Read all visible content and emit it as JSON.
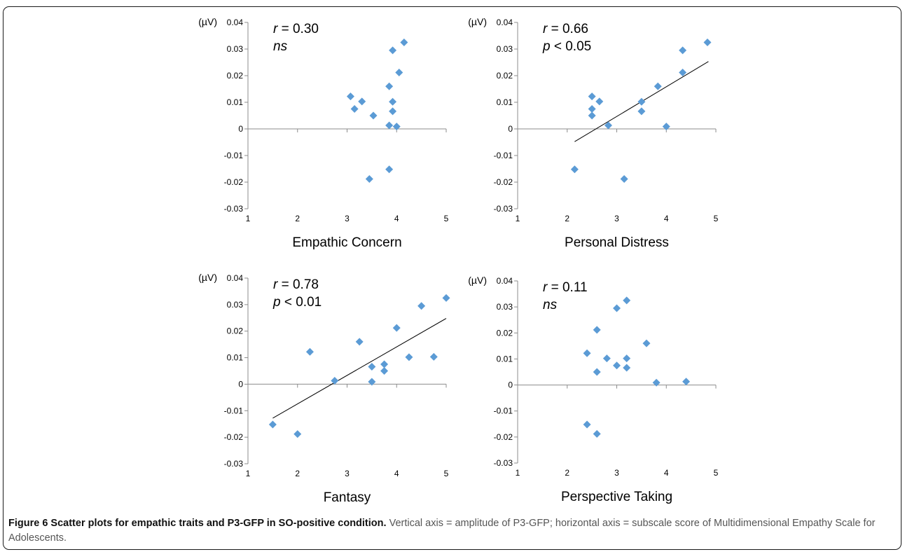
{
  "figure": {
    "caption_title": "Figure 6 Scatter plots for empathic traits and P3-GFP in SO-positive condition.",
    "caption_text": " Vertical axis = amplitude of P3-GFP; horizontal axis = subscale score of Multidimensional Empathy Scale for Adolescents."
  },
  "colors": {
    "marker": "#5b9bd5",
    "axis": "#8c8c8c",
    "text": "#000000",
    "fit": "#000000"
  },
  "chart_data": [
    {
      "type": "scatter",
      "xlabel": "Empathic Concern",
      "unit": "(µV)",
      "xlim": [
        1,
        5
      ],
      "ylim": [
        -0.03,
        0.04
      ],
      "xticks": [
        "1",
        "2",
        "3",
        "4",
        "5"
      ],
      "yticks": [
        "-0.03",
        "-0.02",
        "-0.01",
        "0",
        "0.01",
        "0.02",
        "0.03",
        "0.04"
      ],
      "stat_r": "r",
      "stat_r_val": " = 0.30",
      "stat_p": "ns",
      "stat_p_val": "",
      "trendline": null,
      "points": [
        [
          3.07,
          0.0122
        ],
        [
          3.15,
          0.0075
        ],
        [
          3.3,
          0.0103
        ],
        [
          3.45,
          -0.0188
        ],
        [
          3.53,
          0.005
        ],
        [
          3.85,
          0.016
        ],
        [
          3.85,
          0.0013
        ],
        [
          3.85,
          -0.0152
        ],
        [
          3.92,
          0.0295
        ],
        [
          3.92,
          0.0102
        ],
        [
          3.92,
          0.0066
        ],
        [
          4.0,
          0.0009
        ],
        [
          4.05,
          0.0212
        ],
        [
          4.15,
          0.0325
        ]
      ]
    },
    {
      "type": "scatter",
      "xlabel": "Personal Distress",
      "unit": "(µV)",
      "xlim": [
        1,
        5
      ],
      "ylim": [
        -0.03,
        0.04
      ],
      "xticks": [
        "1",
        "2",
        "3",
        "4",
        "5"
      ],
      "yticks": [
        "-0.03",
        "-0.02",
        "-0.01",
        "0",
        "0.01",
        "0.02",
        "0.03",
        "0.04"
      ],
      "stat_r": "r",
      "stat_r_val": " = 0.66",
      "stat_p": "p",
      "stat_p_val": " < 0.05",
      "trendline": [
        [
          2.15,
          -0.0048
        ],
        [
          4.85,
          0.0253
        ]
      ],
      "points": [
        [
          2.15,
          -0.0152
        ],
        [
          2.5,
          0.0122
        ],
        [
          2.5,
          0.0075
        ],
        [
          2.5,
          0.005
        ],
        [
          2.65,
          0.0103
        ],
        [
          2.83,
          0.0013
        ],
        [
          3.15,
          -0.0188
        ],
        [
          3.5,
          0.0102
        ],
        [
          3.5,
          0.0066
        ],
        [
          3.83,
          0.016
        ],
        [
          4.0,
          0.0009
        ],
        [
          4.33,
          0.0295
        ],
        [
          4.33,
          0.0212
        ],
        [
          4.83,
          0.0325
        ]
      ]
    },
    {
      "type": "scatter",
      "xlabel": "Fantasy",
      "unit": "(µV)",
      "xlim": [
        1,
        5
      ],
      "ylim": [
        -0.03,
        0.04
      ],
      "xticks": [
        "1",
        "2",
        "3",
        "4",
        "5"
      ],
      "yticks": [
        "-0.03",
        "-0.02",
        "-0.01",
        "0",
        "0.01",
        "0.02",
        "0.03",
        "0.04"
      ],
      "stat_r": "r",
      "stat_r_val": " = 0.78",
      "stat_p": "p",
      "stat_p_val": " < 0.01",
      "trendline": [
        [
          1.5,
          -0.0128
        ],
        [
          5.0,
          0.0248
        ]
      ],
      "points": [
        [
          1.5,
          -0.0152
        ],
        [
          2.0,
          -0.0188
        ],
        [
          2.25,
          0.0122
        ],
        [
          2.75,
          0.0013
        ],
        [
          3.25,
          0.016
        ],
        [
          3.5,
          0.0066
        ],
        [
          3.5,
          0.0009
        ],
        [
          3.75,
          0.0075
        ],
        [
          3.75,
          0.005
        ],
        [
          4.0,
          0.0212
        ],
        [
          4.25,
          0.0102
        ],
        [
          4.5,
          0.0295
        ],
        [
          4.75,
          0.0103
        ],
        [
          5.0,
          0.0325
        ]
      ]
    },
    {
      "type": "scatter",
      "xlabel": "Perspective Taking",
      "unit": "(µV)",
      "xlim": [
        1,
        5
      ],
      "ylim": [
        -0.03,
        0.04
      ],
      "xticks": [
        "1",
        "2",
        "3",
        "4",
        "5"
      ],
      "yticks": [
        "-0.03",
        "-0.02",
        "-0.01",
        "0",
        "0.01",
        "0.02",
        "0.03",
        "0.04"
      ],
      "stat_r": "r",
      "stat_r_val": " = 0.11",
      "stat_p": "ns",
      "stat_p_val": "",
      "trendline": null,
      "points": [
        [
          2.4,
          0.0122
        ],
        [
          2.4,
          -0.0152
        ],
        [
          2.6,
          0.0212
        ],
        [
          2.6,
          0.005
        ],
        [
          2.6,
          -0.0188
        ],
        [
          2.8,
          0.0102
        ],
        [
          3.0,
          0.0295
        ],
        [
          3.0,
          0.0075
        ],
        [
          3.2,
          0.0325
        ],
        [
          3.2,
          0.0102
        ],
        [
          3.2,
          0.0066
        ],
        [
          3.6,
          0.016
        ],
        [
          3.8,
          0.0009
        ],
        [
          4.4,
          0.0013
        ]
      ]
    }
  ]
}
